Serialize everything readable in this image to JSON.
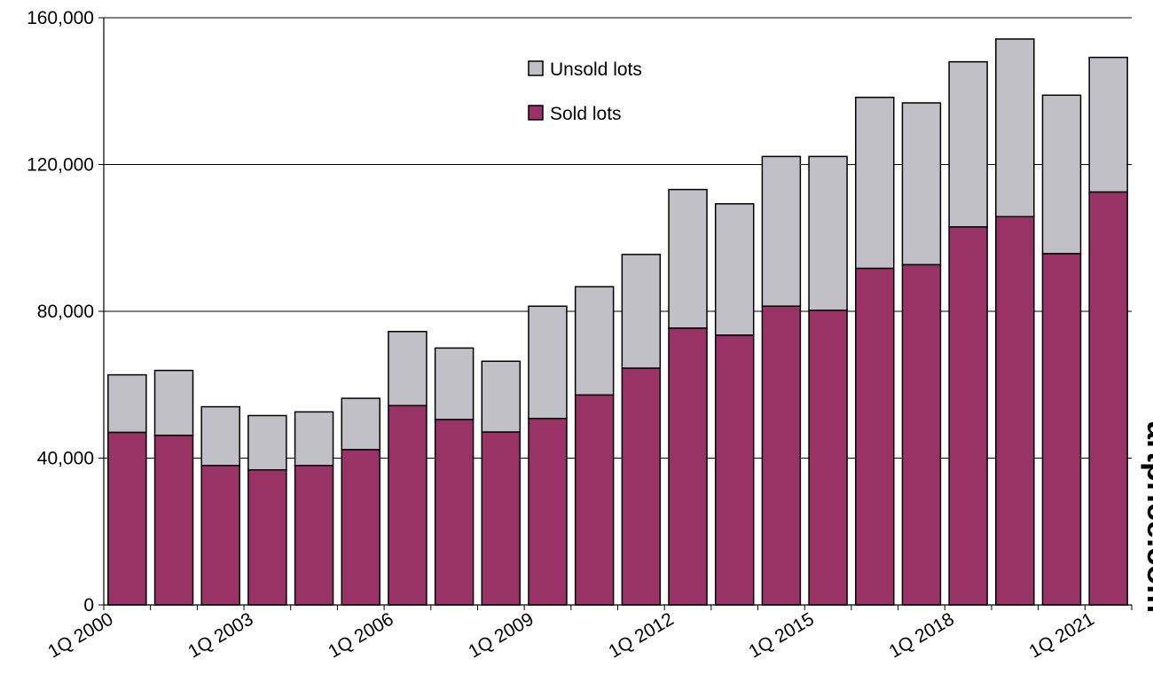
{
  "chart_data": {
    "type": "bar",
    "stacked": true,
    "categories": [
      "2000",
      "2001",
      "2002",
      "2003",
      "2004",
      "2005",
      "2006",
      "2007",
      "2008",
      "2009",
      "2010",
      "2011",
      "2012",
      "2013",
      "2014",
      "2015",
      "2016",
      "2017",
      "2018",
      "2019",
      "2020",
      "2021"
    ],
    "series": [
      {
        "name": "Sold lots",
        "color": "#993366",
        "values": [
          47000,
          46200,
          38000,
          36800,
          38000,
          42300,
          54300,
          50500,
          47100,
          50800,
          57200,
          64500,
          75400,
          73500,
          81400,
          80300,
          91700,
          92700,
          103000,
          105800,
          95700,
          112500
        ]
      },
      {
        "name": "Unsold lots",
        "color": "#c0c0c6",
        "values": [
          15700,
          17700,
          16000,
          14800,
          14600,
          14000,
          20200,
          19500,
          19300,
          30600,
          29500,
          31000,
          37800,
          35800,
          40800,
          41900,
          46600,
          44100,
          45000,
          48400,
          43200,
          36700
        ]
      }
    ],
    "x_tick_labels": [
      "1Q 2000",
      "1Q 2003",
      "1Q 2006",
      "1Q 2009",
      "1Q 2012",
      "1Q 2015",
      "1Q 2018",
      "1Q 2021"
    ],
    "y_ticks": [
      0,
      40000,
      80000,
      120000,
      160000
    ],
    "y_tick_labels": [
      "0",
      "40,000",
      "80,000",
      "120,000",
      "160,000"
    ],
    "ylim": [
      0,
      160000
    ],
    "grid": true,
    "legend": {
      "position": "top-center",
      "entries": [
        "Unsold lots",
        "Sold lots"
      ]
    },
    "title": "",
    "xlabel": "",
    "ylabel": ""
  },
  "watermark": "artprice.com",
  "watermark_mark": "®"
}
